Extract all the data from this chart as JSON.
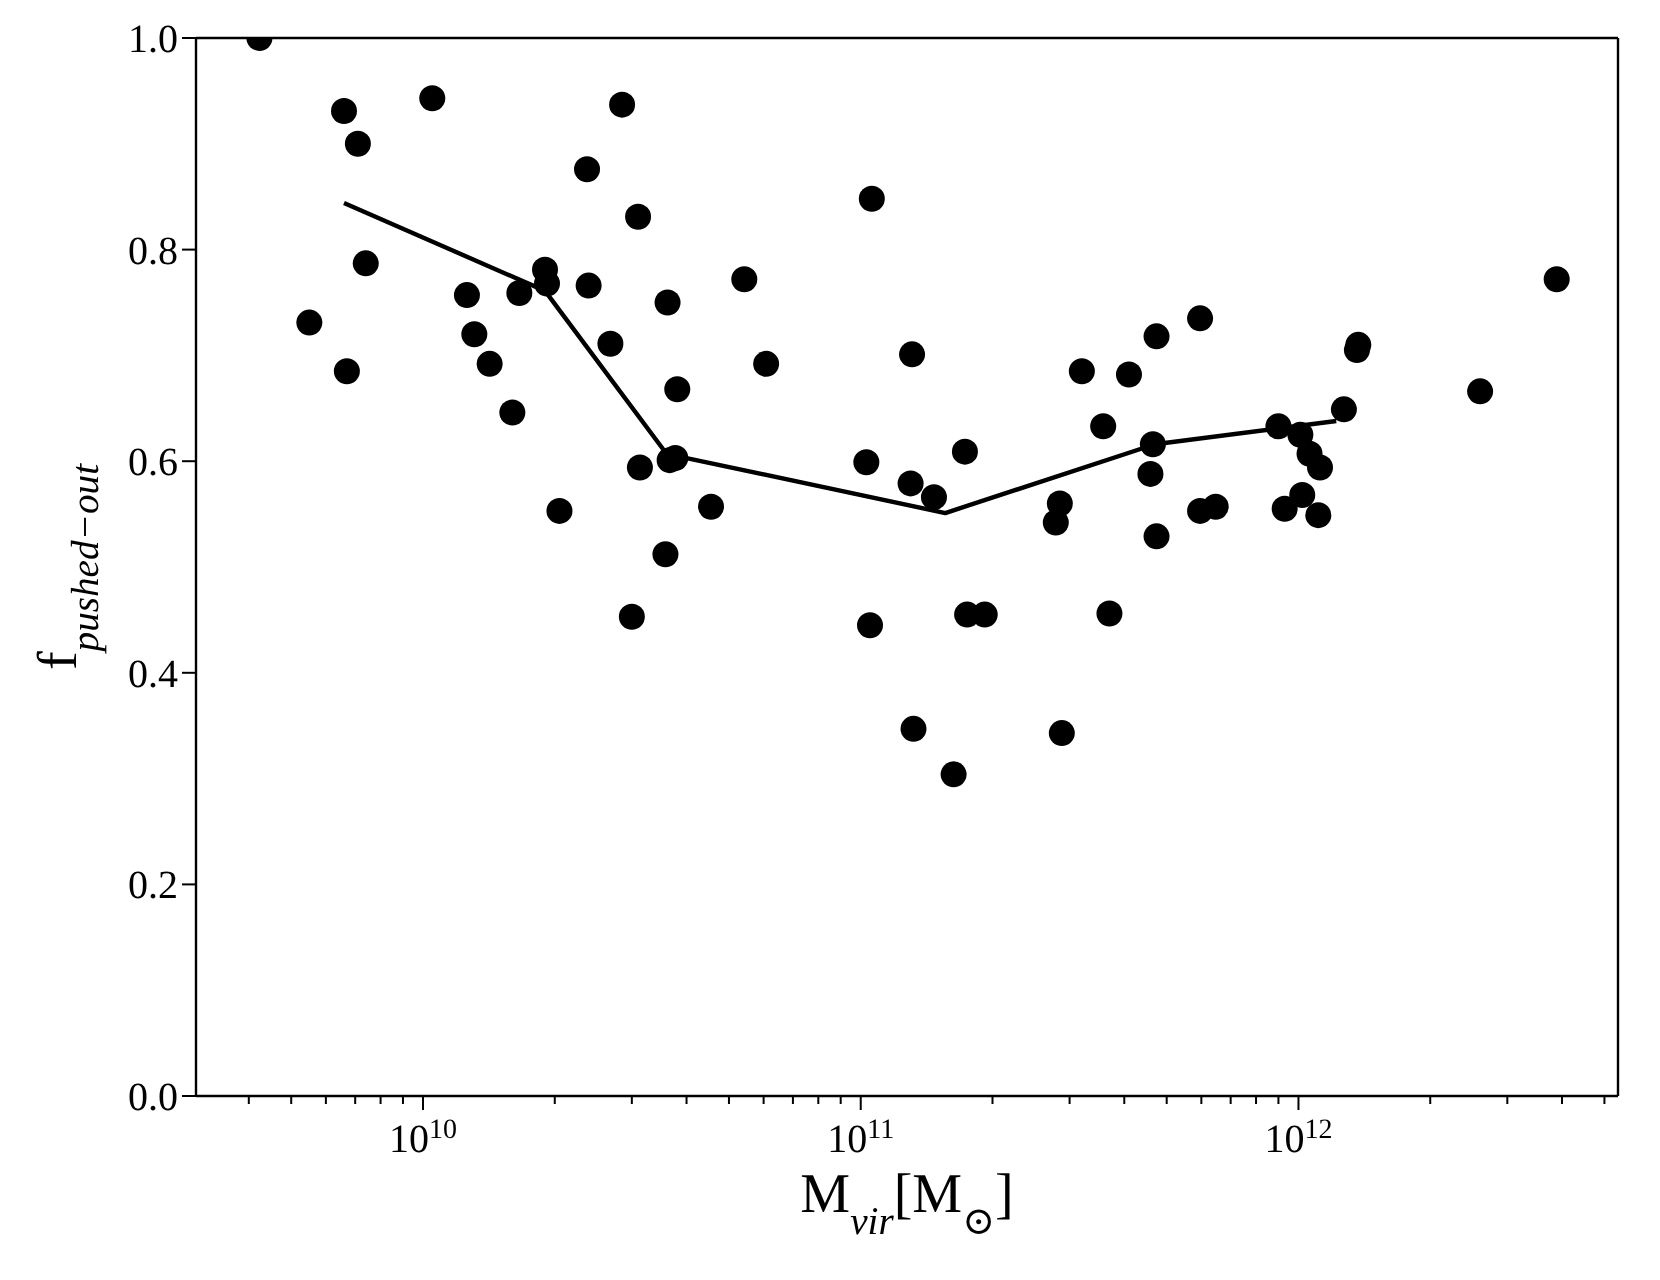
{
  "chart_data": {
    "type": "scatter",
    "xlabel": "M$_{vir}$[M$_{⊙}$]",
    "ylabel": "f$_{pushed−out}$",
    "log": "x",
    "marker": "circle",
    "xlim": [
      3030000000.0,
      5370000000000.0
    ],
    "ylim": [
      0,
      1
    ],
    "xticks": [
      {
        "value": 4000000000.0,
        "label": null
      },
      {
        "value": 5000000000.0,
        "label": null
      },
      {
        "value": 6000000000.0,
        "label": null
      },
      {
        "value": 7000000000.0,
        "label": null
      },
      {
        "value": 8000000000.0,
        "label": null
      },
      {
        "value": 9000000000.0,
        "label": null
      },
      {
        "value": 10000000000.0,
        "label": "10$^{10}$"
      },
      {
        "value": 20000000000.0,
        "label": null
      },
      {
        "value": 30000000000.0,
        "label": null
      },
      {
        "value": 40000000000.0,
        "label": null
      },
      {
        "value": 50000000000.0,
        "label": null
      },
      {
        "value": 60000000000.0,
        "label": null
      },
      {
        "value": 70000000000.0,
        "label": null
      },
      {
        "value": 80000000000.0,
        "label": null
      },
      {
        "value": 90000000000.0,
        "label": null
      },
      {
        "value": 100000000000.0,
        "label": "10$^{11}$"
      },
      {
        "value": 200000000000.0,
        "label": null
      },
      {
        "value": 300000000000.0,
        "label": null
      },
      {
        "value": 400000000000.0,
        "label": null
      },
      {
        "value": 500000000000.0,
        "label": null
      },
      {
        "value": 600000000000.0,
        "label": null
      },
      {
        "value": 700000000000.0,
        "label": null
      },
      {
        "value": 800000000000.0,
        "label": null
      },
      {
        "value": 900000000000.0,
        "label": null
      },
      {
        "value": 1000000000000.0,
        "label": "10$^{12}$"
      },
      {
        "value": 2000000000000.0,
        "label": null
      },
      {
        "value": 3000000000000.0,
        "label": null
      },
      {
        "value": 4000000000000.0,
        "label": null
      },
      {
        "value": 5000000000000.0,
        "label": null
      }
    ],
    "yticks": [
      {
        "value": 0,
        "label": "0.0"
      },
      {
        "value": 0.2,
        "label": "0.2"
      },
      {
        "value": 0.4,
        "label": "0.4"
      },
      {
        "value": 0.6,
        "label": "0.6"
      },
      {
        "value": 0.8,
        "label": "0.8"
      },
      {
        "value": 1,
        "label": "1.0"
      }
    ],
    "series": [
      {
        "color": "#000000",
        "x": [
          4230000000.0,
          6600000000.0,
          7100000000.0,
          10500000000.0,
          28500000000.0,
          23700000000.0,
          31000000000.0,
          7400000000.0,
          19000000000.0,
          19200000000.0,
          12600000000.0,
          16600000000.0,
          23900000000.0,
          36200000000.0,
          5500000000.0,
          13100000000.0,
          26800000000.0,
          14200000000.0,
          6700000000.0,
          38100000000.0,
          16000000000.0,
          31300000000.0,
          36600000000.0,
          37700000000.0,
          20500000000.0,
          35800000000.0,
          30000000000.0,
          45500000000.0,
          54200000000.0,
          60800000000.0,
          131000000000.0,
          320000000000.0,
          410000000000.0,
          474000000000.0,
          358000000000.0,
          103000000000.0,
          130000000000.0,
          147000000000.0,
          173000000000.0,
          285000000000.0,
          279000000000.0,
          465000000000.0,
          459000000000.0,
          474000000000.0,
          105000000000.0,
          175000000000.0,
          192000000000.0,
          370000000000.0,
          132000000000.0,
          288000000000.0,
          163000000000.0,
          106000000000.0,
          3890000000000.0,
          596000000000.0,
          1360000000000.0,
          1370000000000.0,
          2600000000000.0,
          1270000000000.0,
          900000000000.0,
          1010000000000.0,
          1060000000000.0,
          1120000000000.0,
          1020000000000.0,
          930000000000.0,
          1110000000000.0,
          596000000000.0,
          647000000000.0
        ],
        "values": [
          1.0,
          0.931,
          0.9,
          0.943,
          0.937,
          0.876,
          0.831,
          0.787,
          0.781,
          0.768,
          0.757,
          0.759,
          0.766,
          0.75,
          0.731,
          0.72,
          0.711,
          0.692,
          0.685,
          0.668,
          0.646,
          0.594,
          0.601,
          0.603,
          0.553,
          0.512,
          0.453,
          0.557,
          0.772,
          0.692,
          0.701,
          0.685,
          0.682,
          0.718,
          0.633,
          0.599,
          0.579,
          0.566,
          0.609,
          0.56,
          0.542,
          0.616,
          0.588,
          0.529,
          0.445,
          0.455,
          0.455,
          0.456,
          0.347,
          0.343,
          0.304,
          0.848,
          0.772,
          0.735,
          0.705,
          0.71,
          0.666,
          0.649,
          0.633,
          0.625,
          0.607,
          0.594,
          0.568,
          0.555,
          0.549,
          0.553,
          0.557
        ]
      },
      {
        "type": "line",
        "color": "#000000",
        "marker": "none",
        "x": [
          6600000000.0,
          19000000000.0,
          36000000000.0,
          156000000000.0,
          470000000000.0,
          1220000000000.0
        ],
        "values": [
          0.844,
          0.761,
          0.607,
          0.551,
          0.616,
          0.638
        ]
      }
    ]
  }
}
